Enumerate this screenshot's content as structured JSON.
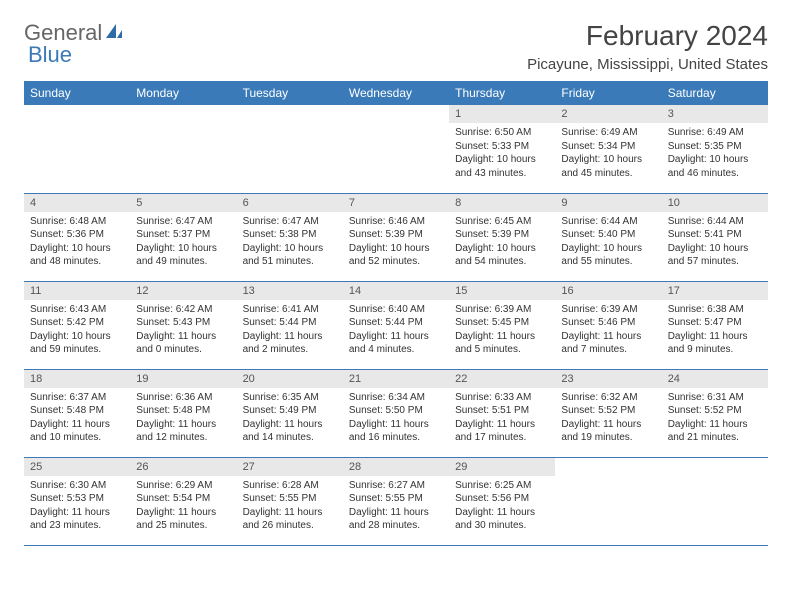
{
  "logo": {
    "text_general": "General",
    "text_blue": "Blue"
  },
  "title": "February 2024",
  "location": "Picayune, Mississippi, United States",
  "colors": {
    "header_bg": "#3a7ab8",
    "header_text": "#ffffff",
    "daynum_bg": "#e8e8e8",
    "row_border": "#3a7ab8",
    "body_text": "#333333",
    "page_bg": "#ffffff"
  },
  "weekdays": [
    "Sunday",
    "Monday",
    "Tuesday",
    "Wednesday",
    "Thursday",
    "Friday",
    "Saturday"
  ],
  "days": [
    {
      "n": 1,
      "col": 4,
      "sunrise": "Sunrise: 6:50 AM",
      "sunset": "Sunset: 5:33 PM",
      "daylight": "Daylight: 10 hours and 43 minutes."
    },
    {
      "n": 2,
      "col": 5,
      "sunrise": "Sunrise: 6:49 AM",
      "sunset": "Sunset: 5:34 PM",
      "daylight": "Daylight: 10 hours and 45 minutes."
    },
    {
      "n": 3,
      "col": 6,
      "sunrise": "Sunrise: 6:49 AM",
      "sunset": "Sunset: 5:35 PM",
      "daylight": "Daylight: 10 hours and 46 minutes."
    },
    {
      "n": 4,
      "col": 0,
      "sunrise": "Sunrise: 6:48 AM",
      "sunset": "Sunset: 5:36 PM",
      "daylight": "Daylight: 10 hours and 48 minutes."
    },
    {
      "n": 5,
      "col": 1,
      "sunrise": "Sunrise: 6:47 AM",
      "sunset": "Sunset: 5:37 PM",
      "daylight": "Daylight: 10 hours and 49 minutes."
    },
    {
      "n": 6,
      "col": 2,
      "sunrise": "Sunrise: 6:47 AM",
      "sunset": "Sunset: 5:38 PM",
      "daylight": "Daylight: 10 hours and 51 minutes."
    },
    {
      "n": 7,
      "col": 3,
      "sunrise": "Sunrise: 6:46 AM",
      "sunset": "Sunset: 5:39 PM",
      "daylight": "Daylight: 10 hours and 52 minutes."
    },
    {
      "n": 8,
      "col": 4,
      "sunrise": "Sunrise: 6:45 AM",
      "sunset": "Sunset: 5:39 PM",
      "daylight": "Daylight: 10 hours and 54 minutes."
    },
    {
      "n": 9,
      "col": 5,
      "sunrise": "Sunrise: 6:44 AM",
      "sunset": "Sunset: 5:40 PM",
      "daylight": "Daylight: 10 hours and 55 minutes."
    },
    {
      "n": 10,
      "col": 6,
      "sunrise": "Sunrise: 6:44 AM",
      "sunset": "Sunset: 5:41 PM",
      "daylight": "Daylight: 10 hours and 57 minutes."
    },
    {
      "n": 11,
      "col": 0,
      "sunrise": "Sunrise: 6:43 AM",
      "sunset": "Sunset: 5:42 PM",
      "daylight": "Daylight: 10 hours and 59 minutes."
    },
    {
      "n": 12,
      "col": 1,
      "sunrise": "Sunrise: 6:42 AM",
      "sunset": "Sunset: 5:43 PM",
      "daylight": "Daylight: 11 hours and 0 minutes."
    },
    {
      "n": 13,
      "col": 2,
      "sunrise": "Sunrise: 6:41 AM",
      "sunset": "Sunset: 5:44 PM",
      "daylight": "Daylight: 11 hours and 2 minutes."
    },
    {
      "n": 14,
      "col": 3,
      "sunrise": "Sunrise: 6:40 AM",
      "sunset": "Sunset: 5:44 PM",
      "daylight": "Daylight: 11 hours and 4 minutes."
    },
    {
      "n": 15,
      "col": 4,
      "sunrise": "Sunrise: 6:39 AM",
      "sunset": "Sunset: 5:45 PM",
      "daylight": "Daylight: 11 hours and 5 minutes."
    },
    {
      "n": 16,
      "col": 5,
      "sunrise": "Sunrise: 6:39 AM",
      "sunset": "Sunset: 5:46 PM",
      "daylight": "Daylight: 11 hours and 7 minutes."
    },
    {
      "n": 17,
      "col": 6,
      "sunrise": "Sunrise: 6:38 AM",
      "sunset": "Sunset: 5:47 PM",
      "daylight": "Daylight: 11 hours and 9 minutes."
    },
    {
      "n": 18,
      "col": 0,
      "sunrise": "Sunrise: 6:37 AM",
      "sunset": "Sunset: 5:48 PM",
      "daylight": "Daylight: 11 hours and 10 minutes."
    },
    {
      "n": 19,
      "col": 1,
      "sunrise": "Sunrise: 6:36 AM",
      "sunset": "Sunset: 5:48 PM",
      "daylight": "Daylight: 11 hours and 12 minutes."
    },
    {
      "n": 20,
      "col": 2,
      "sunrise": "Sunrise: 6:35 AM",
      "sunset": "Sunset: 5:49 PM",
      "daylight": "Daylight: 11 hours and 14 minutes."
    },
    {
      "n": 21,
      "col": 3,
      "sunrise": "Sunrise: 6:34 AM",
      "sunset": "Sunset: 5:50 PM",
      "daylight": "Daylight: 11 hours and 16 minutes."
    },
    {
      "n": 22,
      "col": 4,
      "sunrise": "Sunrise: 6:33 AM",
      "sunset": "Sunset: 5:51 PM",
      "daylight": "Daylight: 11 hours and 17 minutes."
    },
    {
      "n": 23,
      "col": 5,
      "sunrise": "Sunrise: 6:32 AM",
      "sunset": "Sunset: 5:52 PM",
      "daylight": "Daylight: 11 hours and 19 minutes."
    },
    {
      "n": 24,
      "col": 6,
      "sunrise": "Sunrise: 6:31 AM",
      "sunset": "Sunset: 5:52 PM",
      "daylight": "Daylight: 11 hours and 21 minutes."
    },
    {
      "n": 25,
      "col": 0,
      "sunrise": "Sunrise: 6:30 AM",
      "sunset": "Sunset: 5:53 PM",
      "daylight": "Daylight: 11 hours and 23 minutes."
    },
    {
      "n": 26,
      "col": 1,
      "sunrise": "Sunrise: 6:29 AM",
      "sunset": "Sunset: 5:54 PM",
      "daylight": "Daylight: 11 hours and 25 minutes."
    },
    {
      "n": 27,
      "col": 2,
      "sunrise": "Sunrise: 6:28 AM",
      "sunset": "Sunset: 5:55 PM",
      "daylight": "Daylight: 11 hours and 26 minutes."
    },
    {
      "n": 28,
      "col": 3,
      "sunrise": "Sunrise: 6:27 AM",
      "sunset": "Sunset: 5:55 PM",
      "daylight": "Daylight: 11 hours and 28 minutes."
    },
    {
      "n": 29,
      "col": 4,
      "sunrise": "Sunrise: 6:25 AM",
      "sunset": "Sunset: 5:56 PM",
      "daylight": "Daylight: 11 hours and 30 minutes."
    }
  ]
}
